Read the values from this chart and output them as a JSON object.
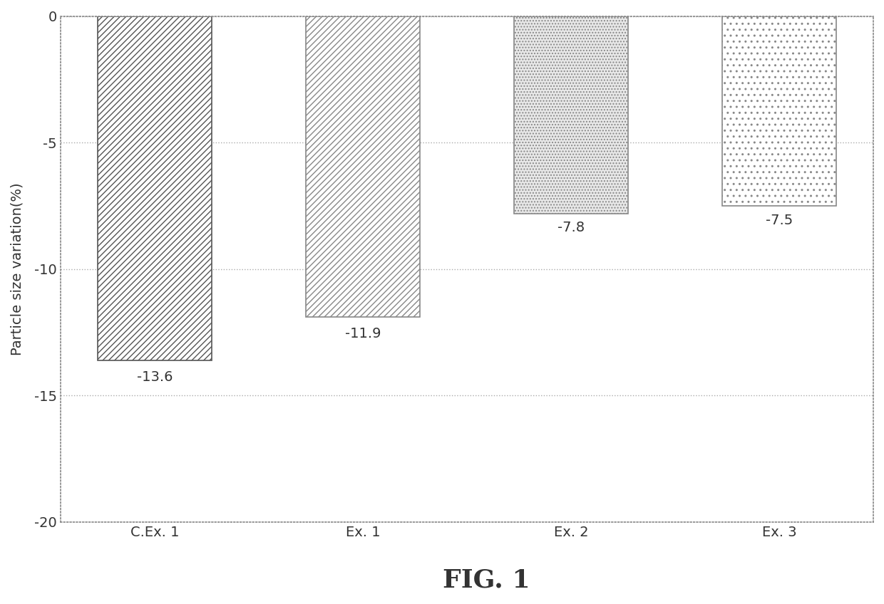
{
  "categories": [
    "C.Ex. 1",
    "Ex. 1",
    "Ex. 2",
    "Ex. 3"
  ],
  "values": [
    -13.6,
    -11.9,
    -7.8,
    -7.5
  ],
  "labels": [
    "-13.6",
    "-11.9",
    "-7.8",
    "-7.5"
  ],
  "ylabel": "Particle size variation(%)",
  "ylim": [
    -20,
    0
  ],
  "yticks": [
    0,
    -5,
    -10,
    -15,
    -20
  ],
  "ytick_labels": [
    "0",
    "-5",
    "-10",
    "-15",
    "-20"
  ],
  "figure_title": "FIG. 1",
  "grid_color": "#aaaaaa",
  "background_color": "#ffffff",
  "bar_width": 0.55,
  "label_fontsize": 14,
  "tick_fontsize": 14,
  "ylabel_fontsize": 14,
  "title_fontsize": 26,
  "label_offsets": [
    -0.4,
    -0.4,
    -0.3,
    -0.3
  ]
}
